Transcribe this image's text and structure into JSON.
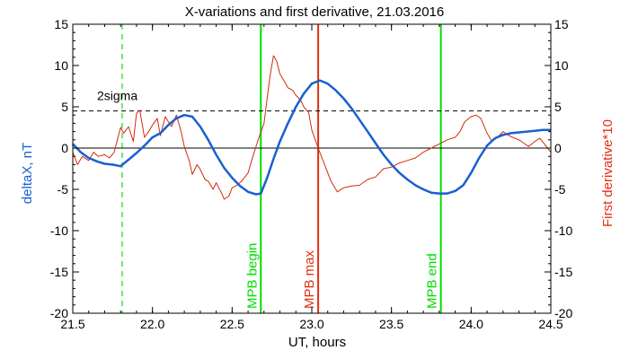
{
  "chart_data": {
    "type": "line",
    "title": "X-variations and first derivative, 21.03.2016",
    "xlabel": "UT, hours",
    "ylabel_left": "deltaX, nT",
    "ylabel_right": "First derivative*10",
    "xlim": [
      21.5,
      24.5
    ],
    "ylim": [
      -20,
      15
    ],
    "x_ticks": [
      "21.5",
      "22.0",
      "22.5",
      "23.0",
      "23.5",
      "24.0",
      "24.5"
    ],
    "y_ticks": [
      "-20",
      "-15",
      "-10",
      "-5",
      "0",
      "5",
      "10",
      "15"
    ],
    "grid": false,
    "threshold": {
      "label": "2sigma",
      "y": 4.5,
      "style": "dashed",
      "color": "#000000"
    },
    "vlines": [
      {
        "label": "",
        "x": 21.81,
        "color": "#22dd22",
        "style": "dashed"
      },
      {
        "label": "MPB begin",
        "x": 22.68,
        "color": "#00dd00",
        "style": "solid"
      },
      {
        "label": "MPB max",
        "x": 23.04,
        "color": "#e03010",
        "style": "solid"
      },
      {
        "label": "MPB end",
        "x": 23.81,
        "color": "#00dd00",
        "style": "solid"
      }
    ],
    "series": [
      {
        "axis": "left",
        "color": "#1a5fd0",
        "x": [
          21.5,
          21.55,
          21.6,
          21.65,
          21.7,
          21.75,
          21.8,
          21.85,
          21.9,
          21.95,
          22.0,
          22.05,
          22.1,
          22.15,
          22.2,
          22.25,
          22.3,
          22.35,
          22.4,
          22.45,
          22.5,
          22.55,
          22.6,
          22.65,
          22.68,
          22.72,
          22.76,
          22.8,
          22.85,
          22.9,
          22.95,
          23.0,
          23.05,
          23.1,
          23.15,
          23.2,
          23.25,
          23.3,
          23.35,
          23.4,
          23.45,
          23.5,
          23.55,
          23.6,
          23.65,
          23.7,
          23.75,
          23.8,
          23.85,
          23.9,
          23.95,
          24.0,
          24.05,
          24.1,
          24.15,
          24.2,
          24.25,
          24.3,
          24.35,
          24.4,
          24.45,
          24.5
        ],
        "y": [
          0.5,
          -0.5,
          -1.2,
          -1.6,
          -1.9,
          -2.0,
          -2.2,
          -1.4,
          -0.6,
          0.3,
          1.3,
          1.8,
          2.8,
          3.6,
          4.0,
          3.8,
          2.6,
          1.0,
          -0.8,
          -2.4,
          -3.6,
          -4.6,
          -5.3,
          -5.6,
          -5.5,
          -3.6,
          -1.3,
          0.8,
          3.0,
          5.0,
          6.6,
          7.8,
          8.2,
          7.8,
          7.0,
          6.0,
          4.8,
          3.4,
          2.0,
          0.6,
          -0.8,
          -2.0,
          -3.0,
          -3.8,
          -4.5,
          -5.0,
          -5.4,
          -5.5,
          -5.5,
          -5.2,
          -4.5,
          -3.0,
          -1.2,
          0.3,
          1.2,
          1.6,
          1.8,
          1.9,
          2.0,
          2.1,
          2.2,
          2.2
        ]
      },
      {
        "axis": "right",
        "color": "#d42a0e",
        "x": [
          21.5,
          21.53,
          21.56,
          21.6,
          21.63,
          21.66,
          21.7,
          21.73,
          21.76,
          21.8,
          21.82,
          21.85,
          21.88,
          21.9,
          21.92,
          21.95,
          21.98,
          22.0,
          22.03,
          22.05,
          22.08,
          22.1,
          22.12,
          22.15,
          22.18,
          22.2,
          22.23,
          22.25,
          22.28,
          22.3,
          22.33,
          22.35,
          22.38,
          22.4,
          22.43,
          22.45,
          22.48,
          22.5,
          22.53,
          22.56,
          22.6,
          22.63,
          22.66,
          22.7,
          22.72,
          22.74,
          22.76,
          22.78,
          22.8,
          22.83,
          22.85,
          22.88,
          22.9,
          22.93,
          22.95,
          22.98,
          23.0,
          23.04,
          23.08,
          23.12,
          23.16,
          23.2,
          23.25,
          23.3,
          23.35,
          23.4,
          23.45,
          23.5,
          23.55,
          23.6,
          23.65,
          23.7,
          23.75,
          23.8,
          23.85,
          23.9,
          23.93,
          23.96,
          24.0,
          24.03,
          24.06,
          24.1,
          24.13,
          24.16,
          24.2,
          24.23,
          24.26,
          24.3,
          24.33,
          24.36,
          24.4,
          24.43,
          24.46,
          24.5
        ],
        "y": [
          -0.5,
          -2.0,
          -1.0,
          -1.5,
          -0.5,
          -1.0,
          -0.8,
          -1.2,
          -0.5,
          2.5,
          1.8,
          2.6,
          0.8,
          4.2,
          4.6,
          1.3,
          2.1,
          2.8,
          3.6,
          1.5,
          3.8,
          3.2,
          2.6,
          4.0,
          2.0,
          0.2,
          -1.5,
          -3.2,
          -2.0,
          -2.6,
          -3.8,
          -4.0,
          -5.0,
          -4.2,
          -5.3,
          -6.2,
          -5.8,
          -4.8,
          -4.5,
          -4.0,
          -3.0,
          -1.0,
          0.8,
          3.0,
          6.0,
          9.0,
          11.2,
          10.5,
          9.0,
          8.0,
          7.3,
          7.0,
          6.4,
          5.8,
          5.0,
          4.3,
          2.2,
          0.0,
          -2.0,
          -4.0,
          -5.3,
          -4.8,
          -4.6,
          -4.5,
          -3.8,
          -3.5,
          -2.5,
          -2.3,
          -1.8,
          -1.5,
          -1.2,
          -0.5,
          0.0,
          0.5,
          1.0,
          1.3,
          2.0,
          3.2,
          3.8,
          4.0,
          3.6,
          1.8,
          0.8,
          1.2,
          2.0,
          1.6,
          1.3,
          1.0,
          0.6,
          0.2,
          0.8,
          1.2,
          0.5,
          -0.5
        ]
      }
    ]
  }
}
